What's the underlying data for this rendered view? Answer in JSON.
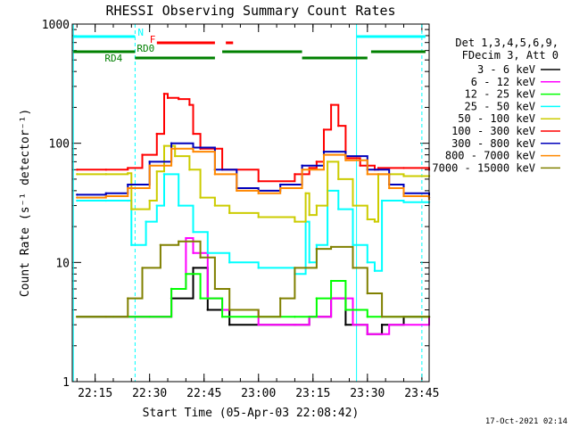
{
  "chart_data": {
    "type": "line",
    "title": "RHESSI Observing Summary Count Rates",
    "xlabel": "Start Time (05-Apr-03 22:08:42)",
    "ylabel": "Count Rate (s⁻¹ detector⁻¹)",
    "y_scale": "log",
    "ylim": [
      1,
      1000
    ],
    "xlim": [
      "22:08:42",
      "23:47"
    ],
    "x_ticks": [
      "22:15",
      "22:30",
      "22:45",
      "23:00",
      "23:15",
      "23:30",
      "23:45"
    ],
    "y_ticks": [
      "1",
      "10",
      "100",
      "1000"
    ],
    "grid": false,
    "background": "#ffffff",
    "frame_color": "#000000",
    "legend_position": "right",
    "legend_header": [
      "Det 1,3,4,5,6,9,",
      "FDecim 3, Att 0"
    ],
    "footer_date": "17-Oct-2021 02:14",
    "series": [
      {
        "name": "3 - 6 keV",
        "color": "#000000",
        "x": [
          "22:10",
          "22:20",
          "22:30",
          "22:36",
          "22:42",
          "22:46",
          "22:52",
          "23:00",
          "23:10",
          "23:14",
          "23:20",
          "23:24",
          "23:30",
          "23:34",
          "23:40",
          "23:47"
        ],
        "y": [
          3.5,
          3.5,
          3.5,
          5,
          9,
          4,
          3,
          3,
          3,
          3.5,
          5,
          3,
          2.5,
          3,
          3.5,
          3.5
        ]
      },
      {
        "name": "6 - 12 keV",
        "color": "#ff00ff",
        "x": [
          "22:10",
          "22:20",
          "22:30",
          "22:36",
          "22:40",
          "22:42",
          "22:46",
          "22:50",
          "23:00",
          "23:10",
          "23:14",
          "23:20",
          "23:26",
          "23:30",
          "23:36",
          "23:47"
        ],
        "y": [
          3.5,
          3.5,
          3.5,
          6,
          16,
          12,
          5,
          4,
          3,
          3,
          3.5,
          5,
          3,
          2.5,
          3,
          3.5
        ]
      },
      {
        "name": "12 - 25 keV",
        "color": "#00ff00",
        "x": [
          "22:10",
          "22:20",
          "22:30",
          "22:36",
          "22:40",
          "22:44",
          "22:50",
          "23:00",
          "23:10",
          "23:16",
          "23:20",
          "23:24",
          "23:30",
          "23:40",
          "23:47"
        ],
        "y": [
          3.5,
          3.5,
          3.5,
          6,
          8,
          5,
          3.5,
          3.5,
          3.5,
          5,
          7,
          4,
          3.5,
          3.5,
          3.5
        ]
      },
      {
        "name": "25 - 50 keV",
        "color": "#00ffff",
        "x": [
          "22:10",
          "22:18",
          "22:24",
          "22:25",
          "22:29",
          "22:32",
          "22:34",
          "22:38",
          "22:42",
          "22:46",
          "22:52",
          "23:00",
          "23:10",
          "23:13",
          "23:14",
          "23:16",
          "23:19",
          "23:22",
          "23:26",
          "23:30",
          "23:32",
          "23:34",
          "23:40",
          "23:47"
        ],
        "y": [
          33,
          33,
          33,
          14,
          22,
          30,
          55,
          30,
          18,
          12,
          10,
          9,
          8,
          22,
          10,
          14,
          40,
          28,
          14,
          10,
          8.5,
          33,
          32,
          32
        ]
      },
      {
        "name": "50 - 100 keV",
        "color": "#cccc00",
        "x": [
          "22:10",
          "22:18",
          "22:24",
          "22:25",
          "22:30",
          "22:32",
          "22:34",
          "22:37",
          "22:41",
          "22:44",
          "22:48",
          "22:52",
          "23:00",
          "23:10",
          "23:13",
          "23:14",
          "23:16",
          "23:19",
          "23:22",
          "23:26",
          "23:30",
          "23:32",
          "23:33",
          "23:40",
          "23:47"
        ],
        "y": [
          55,
          55,
          56,
          28,
          33,
          58,
          95,
          78,
          60,
          35,
          30,
          26,
          24,
          22,
          38,
          25,
          30,
          70,
          50,
          30,
          23,
          22,
          55,
          53,
          53
        ]
      },
      {
        "name": "100 - 300 keV",
        "color": "#ff0000",
        "x": [
          "22:10",
          "22:18",
          "22:24",
          "22:28",
          "22:32",
          "22:34",
          "22:35",
          "22:38",
          "22:41",
          "22:42",
          "22:44",
          "22:50",
          "23:00",
          "23:10",
          "23:14",
          "23:16",
          "23:18",
          "23:20",
          "23:22",
          "23:24",
          "23:28",
          "23:32",
          "23:33",
          "23:40",
          "23:47"
        ],
        "y": [
          60,
          60,
          62,
          80,
          120,
          260,
          240,
          235,
          210,
          120,
          90,
          60,
          48,
          55,
          62,
          70,
          130,
          210,
          140,
          75,
          65,
          60,
          62,
          62,
          60
        ]
      },
      {
        "name": "300 - 800 keV",
        "color": "#0000bb",
        "x": [
          "22:10",
          "22:18",
          "22:24",
          "22:30",
          "22:36",
          "22:42",
          "22:48",
          "22:54",
          "23:00",
          "23:06",
          "23:12",
          "23:18",
          "23:24",
          "23:30",
          "23:36",
          "23:40",
          "23:47"
        ],
        "y": [
          37,
          38,
          45,
          70,
          100,
          92,
          60,
          42,
          40,
          45,
          65,
          85,
          78,
          60,
          45,
          38,
          35
        ]
      },
      {
        "name": "800 - 7000 keV",
        "color": "#ff8800",
        "x": [
          "22:10",
          "22:18",
          "22:24",
          "22:30",
          "22:36",
          "22:42",
          "22:48",
          "22:54",
          "23:00",
          "23:06",
          "23:12",
          "23:18",
          "23:24",
          "23:30",
          "23:36",
          "23:40",
          "23:47"
        ],
        "y": [
          35,
          36,
          42,
          65,
          90,
          85,
          55,
          40,
          38,
          42,
          60,
          80,
          72,
          55,
          42,
          36,
          34
        ]
      },
      {
        "name": "7000 - 15000 keV",
        "color": "#808000",
        "x": [
          "22:10",
          "22:18",
          "22:24",
          "22:28",
          "22:33",
          "22:38",
          "22:44",
          "22:48",
          "22:52",
          "23:00",
          "23:06",
          "23:10",
          "23:16",
          "23:20",
          "23:26",
          "23:30",
          "23:34",
          "23:40",
          "23:47"
        ],
        "y": [
          3.5,
          3.5,
          5,
          9,
          14,
          15,
          11,
          6,
          4,
          3.5,
          5,
          9,
          13,
          13.5,
          9,
          5.5,
          3.5,
          3.5,
          3.5
        ]
      }
    ],
    "annotations": {
      "vertical_lines": {
        "color": "#00ffff",
        "times": [
          "22:09",
          "22:26",
          "23:27",
          "23:45"
        ],
        "solid_times": [
          "22:09",
          "23:27"
        ]
      },
      "flag_bars": [
        {
          "label": "N",
          "color": "#00ffff",
          "intervals": [
            [
              "22:09",
              "22:26"
            ],
            [
              "23:27",
              "23:46"
            ]
          ]
        },
        {
          "label": "F",
          "color": "#ff0000",
          "intervals": [
            [
              "22:32",
              "22:48"
            ],
            [
              "22:51",
              "22:53"
            ]
          ]
        },
        {
          "label": "RD0",
          "color": "#008000",
          "intervals": [
            [
              "22:09",
              "22:26"
            ],
            [
              "22:50",
              "23:12"
            ],
            [
              "23:31",
              "23:46"
            ]
          ]
        },
        {
          "label": "RD4",
          "color": "#008000",
          "intervals": [
            [
              "22:26",
              "22:48"
            ],
            [
              "23:12",
              "23:30"
            ]
          ]
        }
      ]
    }
  }
}
